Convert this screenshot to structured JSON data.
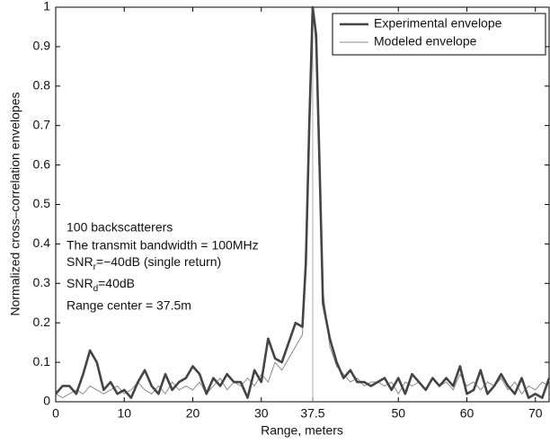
{
  "chart_data": {
    "type": "line",
    "xlabel": "Range, meters",
    "ylabel": "Normalized cross–correlation envelopes",
    "x": [
      0,
      1,
      2,
      3,
      4,
      5,
      6,
      7,
      8,
      9,
      10,
      11,
      12,
      13,
      14,
      15,
      16,
      17,
      18,
      19,
      20,
      21,
      22,
      23,
      24,
      25,
      26,
      27,
      28,
      29,
      30,
      31,
      32,
      33,
      34,
      35,
      36,
      36.5,
      37,
      37.5,
      38,
      38.5,
      39,
      40,
      41,
      42,
      43,
      44,
      45,
      46,
      47,
      48,
      49,
      50,
      51,
      52,
      53,
      54,
      55,
      56,
      57,
      58,
      59,
      60,
      61,
      62,
      63,
      64,
      65,
      66,
      67,
      68,
      69,
      70,
      71,
      72
    ],
    "series": [
      {
        "name": "Experimental envelope",
        "color": "#444444",
        "values": [
          0.02,
          0.04,
          0.04,
          0.02,
          0.07,
          0.13,
          0.1,
          0.03,
          0.05,
          0.02,
          0.03,
          0.01,
          0.05,
          0.08,
          0.04,
          0.02,
          0.07,
          0.03,
          0.05,
          0.06,
          0.09,
          0.07,
          0.02,
          0.06,
          0.04,
          0.07,
          0.05,
          0.05,
          0.01,
          0.08,
          0.05,
          0.16,
          0.11,
          0.1,
          0.15,
          0.2,
          0.19,
          0.35,
          0.7,
          1.0,
          0.93,
          0.6,
          0.25,
          0.16,
          0.1,
          0.06,
          0.08,
          0.05,
          0.05,
          0.04,
          0.05,
          0.06,
          0.03,
          0.06,
          0.02,
          0.07,
          0.05,
          0.03,
          0.06,
          0.04,
          0.06,
          0.04,
          0.09,
          0.02,
          0.03,
          0.08,
          0.02,
          0.04,
          0.07,
          0.04,
          0.02,
          0.06,
          0.01,
          0.02,
          0.01,
          0.06
        ]
      },
      {
        "name": "Modeled envelope",
        "color": "#8a8a8a",
        "values": [
          0.02,
          0.01,
          0.02,
          0.03,
          0.02,
          0.04,
          0.03,
          0.02,
          0.03,
          0.04,
          0.02,
          0.03,
          0.05,
          0.03,
          0.02,
          0.04,
          0.02,
          0.05,
          0.03,
          0.04,
          0.03,
          0.05,
          0.02,
          0.04,
          0.06,
          0.03,
          0.05,
          0.04,
          0.06,
          0.04,
          0.07,
          0.05,
          0.1,
          0.08,
          0.11,
          0.14,
          0.17,
          0.4,
          0.75,
          1.0,
          0.9,
          0.55,
          0.28,
          0.14,
          0.09,
          0.07,
          0.05,
          0.06,
          0.04,
          0.05,
          0.05,
          0.04,
          0.05,
          0.02,
          0.05,
          0.04,
          0.05,
          0.03,
          0.06,
          0.04,
          0.05,
          0.03,
          0.07,
          0.04,
          0.05,
          0.03,
          0.05,
          0.04,
          0.06,
          0.03,
          0.05,
          0.02,
          0.04,
          0.03,
          0.05,
          0.04
        ]
      }
    ],
    "annotations": [
      "100 backscatterers",
      "The transmit bandwidth = 100MHz",
      [
        "SNR",
        "r",
        "=−40dB (single return)"
      ],
      [
        "SNR",
        "d",
        "=40dB"
      ],
      "Range center = 37.5m"
    ],
    "xlim": [
      0,
      72
    ],
    "ylim": [
      0,
      1
    ],
    "xticks": [
      0,
      10,
      20,
      30,
      37.5,
      50,
      60,
      70
    ],
    "yticks": [
      0,
      0.1,
      0.2,
      0.3,
      0.4,
      0.5,
      0.6,
      0.7,
      0.8,
      0.9,
      1
    ],
    "grid": false,
    "legend": "upper right"
  }
}
